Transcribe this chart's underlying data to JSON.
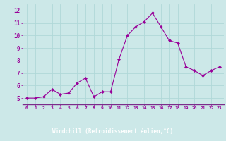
{
  "x": [
    0,
    1,
    2,
    3,
    4,
    5,
    6,
    7,
    8,
    9,
    10,
    11,
    12,
    13,
    14,
    15,
    16,
    17,
    18,
    19,
    20,
    21,
    22,
    23
  ],
  "y": [
    5.0,
    5.0,
    5.1,
    5.7,
    5.3,
    5.4,
    6.2,
    6.6,
    5.1,
    5.5,
    5.5,
    8.1,
    10.0,
    10.7,
    11.1,
    11.8,
    10.7,
    9.6,
    9.4,
    7.5,
    7.2,
    6.8,
    7.2,
    7.5
  ],
  "line_color": "#990099",
  "marker": "D",
  "marker_size": 2,
  "bg_color": "#cce8e8",
  "grid_color": "#b0d8d8",
  "bottom_bar_color": "#7b2d8b",
  "xlabel": "Windchill (Refroidissement éolien,°C)",
  "xlabel_color": "#ffffff",
  "tick_color": "#990099",
  "ylim": [
    4.5,
    12.5
  ],
  "xlim": [
    -0.5,
    23.5
  ],
  "yticks": [
    5,
    6,
    7,
    8,
    9,
    10,
    11,
    12
  ],
  "xticks": [
    0,
    1,
    2,
    3,
    4,
    5,
    6,
    7,
    8,
    9,
    10,
    11,
    12,
    13,
    14,
    15,
    16,
    17,
    18,
    19,
    20,
    21,
    22,
    23
  ]
}
